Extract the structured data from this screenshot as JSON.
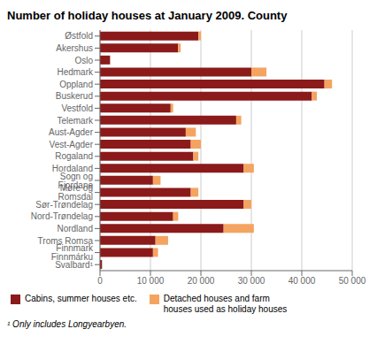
{
  "chart_data": {
    "type": "bar",
    "orientation": "horizontal",
    "stacked": true,
    "title": "Number of holiday houses at January 2009. County",
    "categories": [
      "Østfold",
      "Akershus",
      "Oslo",
      "Hedmark",
      "Oppland",
      "Buskerud",
      "Vestfold",
      "Telemark",
      "Aust-Agder",
      "Vest-Agder",
      "Rogaland",
      "Hordaland",
      "Sogn og Fjordane",
      "Møre og Romsdal",
      "Sør-Trøndelag",
      "Nord-Trøndelag",
      "Nordland",
      "Troms Romsa",
      "Finnmark Finnmárku",
      "Svalbard¹"
    ],
    "series": [
      {
        "name": "Cabins, summer houses etc.",
        "color": "#8B1A1A",
        "values": [
          19500,
          15500,
          2000,
          30000,
          44500,
          42000,
          14000,
          27000,
          17000,
          18000,
          18500,
          28500,
          10500,
          18000,
          28500,
          14500,
          24500,
          11000,
          10500,
          400
        ]
      },
      {
        "name": "Detached houses and farm\nhouses used as holiday houses",
        "color": "#F4A460",
        "values": [
          500,
          500,
          0,
          3000,
          1500,
          1000,
          500,
          1000,
          2000,
          2000,
          1000,
          2000,
          1500,
          1500,
          1500,
          1000,
          6000,
          2500,
          1000,
          0
        ]
      }
    ],
    "xlim": [
      0,
      50000
    ],
    "xticks": [
      0,
      {
        "value": 10000,
        "label": "10 000"
      },
      {
        "value": 20000,
        "label": "20 000"
      },
      {
        "value": 30000,
        "label": "30 000"
      },
      {
        "value": 40000,
        "label": "40 000"
      },
      {
        "value": 50000,
        "label": "50 000"
      }
    ],
    "grid": true,
    "legend": "bottom",
    "annotations": [
      "¹ Only includes Longyearbyen."
    ]
  }
}
